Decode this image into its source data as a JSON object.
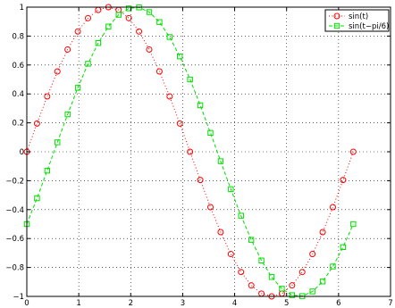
{
  "chart_data": {
    "type": "line",
    "title": "",
    "xlabel": "",
    "ylabel": "",
    "xlim": [
      0,
      7
    ],
    "ylim": [
      -1,
      1
    ],
    "xticks": [
      0,
      1,
      2,
      3,
      4,
      5,
      6,
      7
    ],
    "yticks": [
      -1,
      -0.8,
      -0.6,
      -0.4,
      -0.2,
      0,
      0.2,
      0.4,
      0.6,
      0.8,
      1
    ],
    "xtick_labels": [
      "0",
      "1",
      "2",
      "3",
      "4",
      "5",
      "6",
      "7"
    ],
    "ytick_labels": [
      "−1",
      "−0.8",
      "−0.6",
      "−0.4",
      "−0.2",
      "0",
      "0.2",
      "0.4",
      "0.6",
      "0.8",
      "1"
    ],
    "grid": true,
    "legend_position": "top-right",
    "x": [
      0,
      0.1963,
      0.3927,
      0.589,
      0.7854,
      0.9817,
      1.1781,
      1.3744,
      1.5708,
      1.7671,
      1.9635,
      2.1598,
      2.3562,
      2.5525,
      2.7489,
      2.9452,
      3.1416,
      3.3379,
      3.5343,
      3.7306,
      3.927,
      4.1233,
      4.3197,
      4.516,
      4.7124,
      4.9087,
      5.1051,
      5.3014,
      5.4978,
      5.6941,
      5.8905,
      6.0868,
      6.2832
    ],
    "series": [
      {
        "name": "sin(t)",
        "color": "#ff0000",
        "line_style": "dotted",
        "marker": "circle",
        "values": [
          0,
          0.1951,
          0.3827,
          0.5556,
          0.7071,
          0.8315,
          0.9239,
          0.9808,
          1,
          0.9808,
          0.9239,
          0.8315,
          0.7071,
          0.5556,
          0.3827,
          0.1951,
          0,
          -0.1951,
          -0.3827,
          -0.5556,
          -0.7071,
          -0.8315,
          -0.9239,
          -0.9808,
          -1,
          -0.9808,
          -0.9239,
          -0.8315,
          -0.7071,
          -0.5556,
          -0.3827,
          -0.1951,
          0
        ]
      },
      {
        "name": "sin(t−pi/6)",
        "color": "#00e000",
        "line_style": "dashed",
        "marker": "square",
        "values": [
          -0.5,
          -0.3214,
          -0.1305,
          0.0654,
          0.2588,
          0.4423,
          0.6088,
          0.7518,
          0.866,
          0.9469,
          0.9914,
          0.9979,
          0.9659,
          0.8969,
          0.7934,
          0.6593,
          0.5,
          0.3214,
          0.1305,
          -0.0654,
          -0.2588,
          -0.4423,
          -0.6088,
          -0.7518,
          -0.866,
          -0.9469,
          -0.9914,
          -0.9979,
          -0.9659,
          -0.8969,
          -0.7934,
          -0.6593,
          -0.5
        ]
      }
    ]
  }
}
